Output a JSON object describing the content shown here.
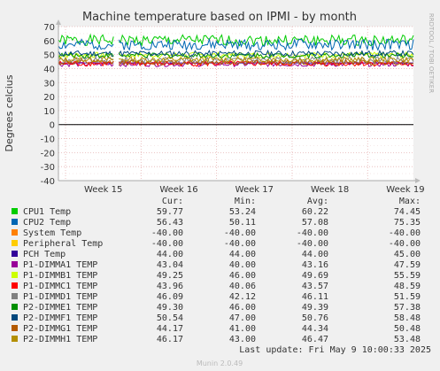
{
  "chart_data": {
    "type": "line",
    "title": "Machine temperature based on IPMI - by month",
    "ylabel": "Degrees celcius",
    "side_label": "RRDTOOL / TOBI OETIKER",
    "xlabel": "",
    "ylim": [
      -40,
      70
    ],
    "yticks": [
      -40,
      -30,
      -20,
      -10,
      0,
      10,
      20,
      30,
      40,
      50,
      60,
      70
    ],
    "xticks": [
      "Week 15",
      "Week 16",
      "Week 17",
      "Week 18",
      "Week 19"
    ],
    "grid": true,
    "legend_headers": {
      "cur": "Cur:",
      "min": "Min:",
      "avg": "Avg:",
      "max": "Max:"
    },
    "series": [
      {
        "name": "CPU1 Temp",
        "color": "#00cc00",
        "cur": "59.77",
        "min": "53.24",
        "avg": "60.22",
        "max": "74.45"
      },
      {
        "name": "CPU2 Temp",
        "color": "#0066b3",
        "cur": "56.43",
        "min": "50.11",
        "avg": "57.08",
        "max": "75.35"
      },
      {
        "name": "System Temp",
        "color": "#ff8000",
        "cur": "-40.00",
        "min": "-40.00",
        "avg": "-40.00",
        "max": "-40.00"
      },
      {
        "name": "Peripheral Temp",
        "color": "#ffcc00",
        "cur": "-40.00",
        "min": "-40.00",
        "avg": "-40.00",
        "max": "-40.00"
      },
      {
        "name": "PCH Temp",
        "color": "#330099",
        "cur": "44.00",
        "min": "44.00",
        "avg": "44.00",
        "max": "45.00"
      },
      {
        "name": "P1-DIMMA1 TEMP",
        "color": "#990099",
        "cur": "43.04",
        "min": "40.00",
        "avg": "43.16",
        "max": "47.59"
      },
      {
        "name": "P1-DIMMB1 TEMP",
        "color": "#ccff00",
        "cur": "49.25",
        "min": "46.00",
        "avg": "49.69",
        "max": "55.59"
      },
      {
        "name": "P1-DIMMC1 TEMP",
        "color": "#ff0000",
        "cur": "43.96",
        "min": "40.06",
        "avg": "43.57",
        "max": "48.59"
      },
      {
        "name": "P1-DIMMD1 TEMP",
        "color": "#808080",
        "cur": "46.09",
        "min": "42.12",
        "avg": "46.11",
        "max": "51.59"
      },
      {
        "name": "P2-DIMME1 TEMP",
        "color": "#008f00",
        "cur": "49.30",
        "min": "46.00",
        "avg": "49.39",
        "max": "57.38"
      },
      {
        "name": "P2-DIMMF1 TEMP",
        "color": "#00487d",
        "cur": "50.54",
        "min": "47.00",
        "avg": "50.76",
        "max": "58.48"
      },
      {
        "name": "P2-DIMMG1 TEMP",
        "color": "#b35a00",
        "cur": "44.17",
        "min": "41.00",
        "avg": "44.34",
        "max": "50.48"
      },
      {
        "name": "P2-DIMMH1 TEMP",
        "color": "#b38f00",
        "cur": "46.17",
        "min": "43.00",
        "avg": "46.47",
        "max": "53.48"
      }
    ]
  },
  "footer": {
    "last_update": "Last update: Fri May  9 10:00:33 2025",
    "munin_version": "Munin 2.0.49"
  }
}
